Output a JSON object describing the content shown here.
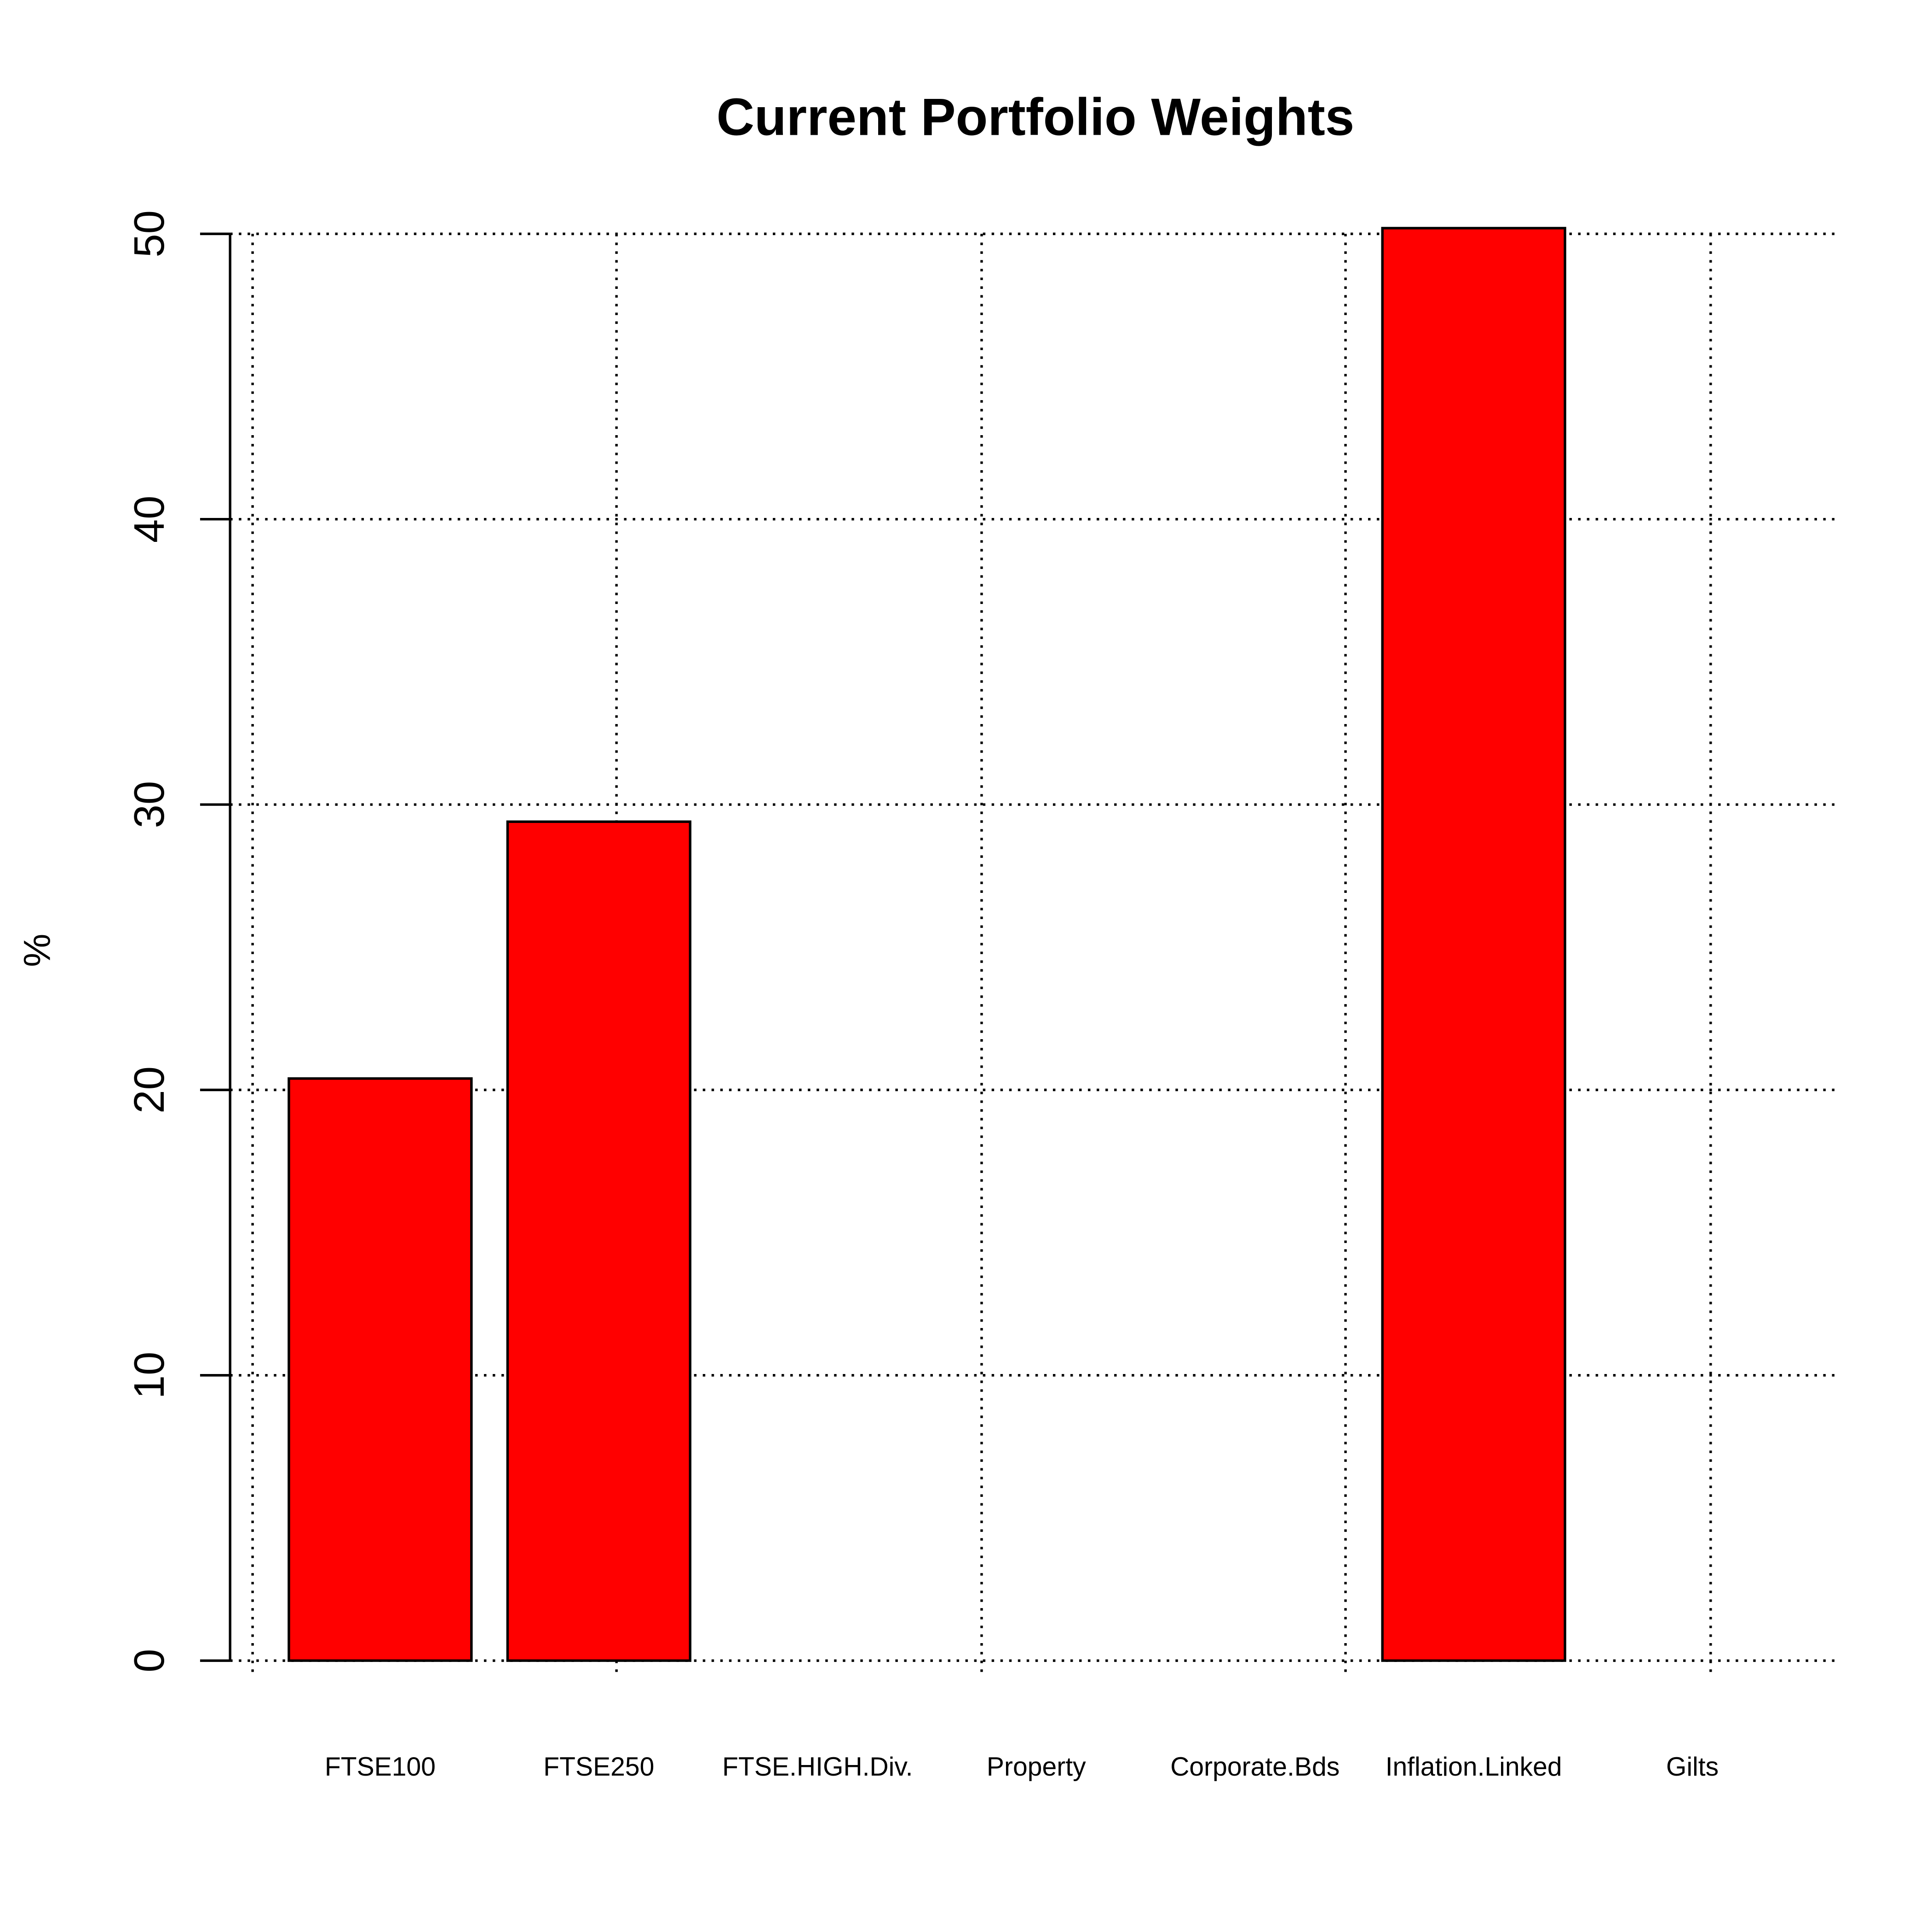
{
  "chart_data": {
    "type": "bar",
    "title": "Current Portfolio Weights",
    "y_label": "%",
    "categories": [
      "FTSE100",
      "FTSE250",
      "FTSE.HIGH.Div.",
      "Property",
      "Corporate.Bds",
      "Inflation.Linked",
      "Gilts"
    ],
    "values": [
      20.4,
      29.4,
      0,
      0,
      0,
      50.2,
      0
    ],
    "color": "#ff0000",
    "ylim": [
      0,
      50
    ],
    "yticks": [
      0,
      10,
      20,
      30,
      40,
      50
    ],
    "grid": true
  }
}
